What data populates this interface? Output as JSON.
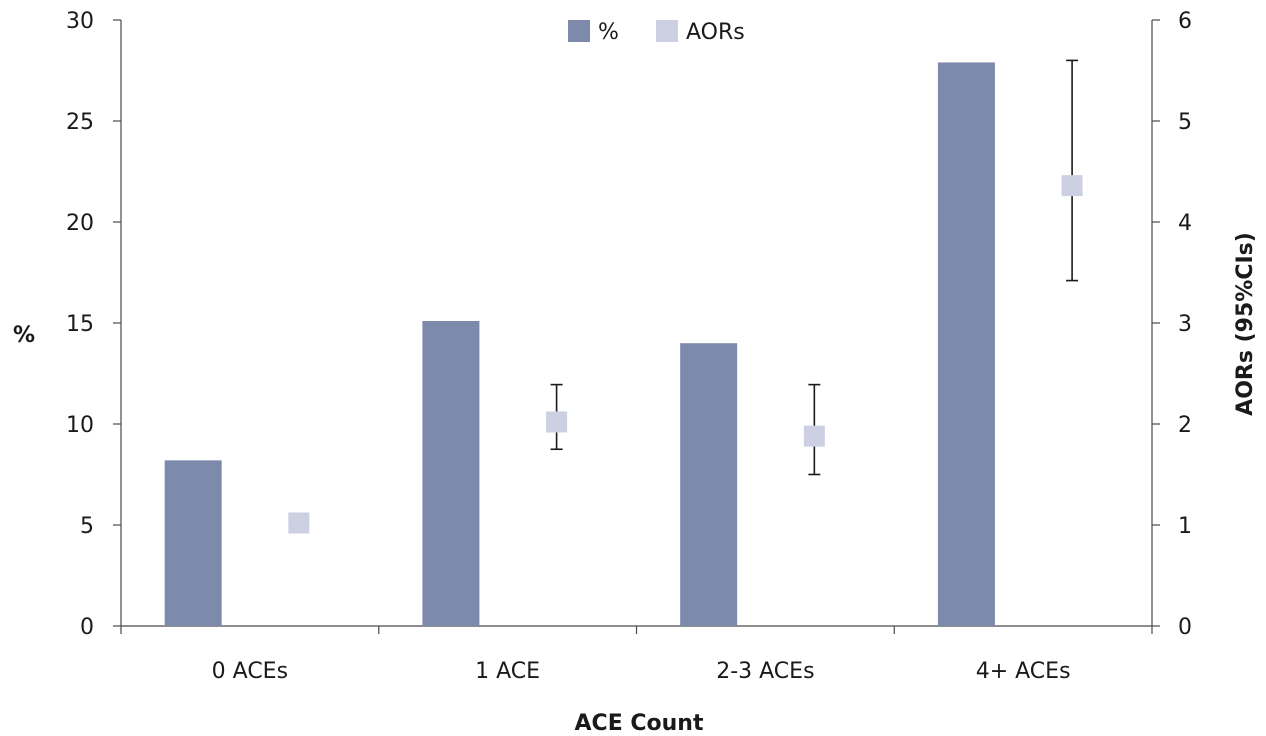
{
  "chart_data": {
    "type": "bar",
    "xlabel": "ACE Count",
    "ylabel_left": "%",
    "ylabel_right": "AORs (95%CIs)",
    "categories": [
      "0 ACEs",
      "1 ACE",
      "2-3 ACEs",
      "4+ ACEs"
    ],
    "y_left": {
      "min": 0,
      "max": 30,
      "ticks": [
        0,
        5,
        10,
        15,
        20,
        25,
        30
      ]
    },
    "y_right": {
      "min": 0,
      "max": 6,
      "ticks": [
        0,
        1,
        2,
        3,
        4,
        5,
        6
      ]
    },
    "grid": false,
    "legend_position": "top-center",
    "series": [
      {
        "name": "%",
        "kind": "bar",
        "axis": "left",
        "color": "#7e8aac",
        "values": [
          8.2,
          15.1,
          14.0,
          27.9
        ]
      },
      {
        "name": "AORs",
        "kind": "marker",
        "axis": "right",
        "color": "#cdd0e2",
        "values": [
          1.02,
          2.02,
          1.88,
          4.36
        ],
        "ci_low": [
          null,
          1.75,
          1.5,
          3.42
        ],
        "ci_high": [
          null,
          2.39,
          2.39,
          5.6
        ]
      }
    ]
  }
}
